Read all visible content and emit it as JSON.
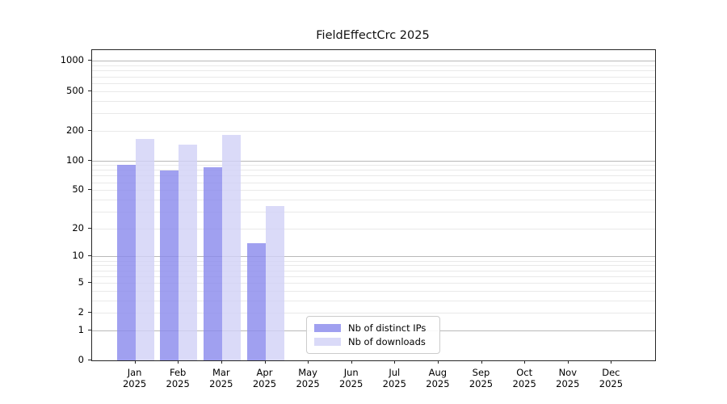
{
  "title": "FieldEffectCrc 2025",
  "chart_data": {
    "type": "bar",
    "title": "FieldEffectCrc 2025",
    "categories": [
      "Jan",
      "Feb",
      "Mar",
      "Apr",
      "May",
      "Jun",
      "Jul",
      "Aug",
      "Sep",
      "Oct",
      "Nov",
      "Dec"
    ],
    "year_label": "2025",
    "series": [
      {
        "name": "Nb of distinct IPs",
        "color": "rgba(136,136,236,0.8)",
        "values": [
          90,
          79,
          86,
          14,
          0,
          0,
          0,
          0,
          0,
          0,
          0,
          0
        ]
      },
      {
        "name": "Nb of downloads",
        "color": "rgba(209,209,246,0.8)",
        "values": [
          165,
          145,
          180,
          34,
          0,
          0,
          0,
          0,
          0,
          0,
          0,
          0
        ]
      }
    ],
    "y_axis": {
      "scale": "log10(value+1)",
      "tick_values": [
        0,
        1,
        2,
        5,
        10,
        20,
        50,
        100,
        200,
        500,
        1000
      ],
      "range_max_approx": 1285
    },
    "grid": "on, log minors; powers of ten emphasized",
    "legend_position": "inside bottom-center"
  },
  "colors": {
    "grid_minor": "#e9e9e9",
    "grid_major": "#b9b9b9",
    "spine": "#262626",
    "text": "#000000"
  }
}
